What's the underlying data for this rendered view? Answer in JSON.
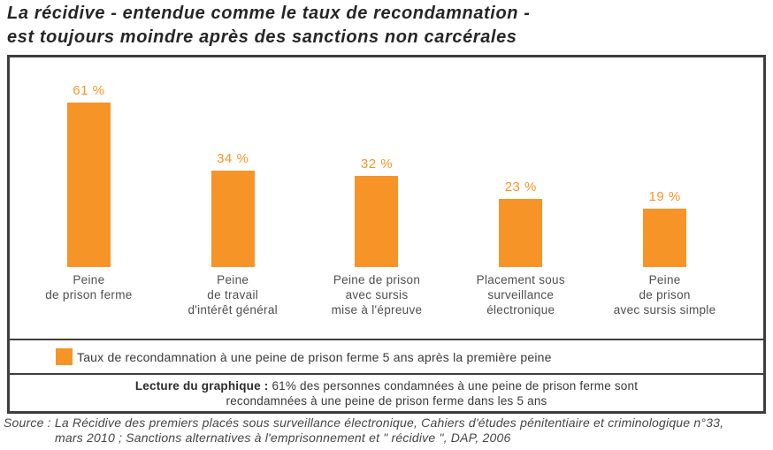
{
  "title": {
    "line1": "La récidive - entendue comme le taux de recondamnation -",
    "line2": "est toujours moindre après des sanctions non carcérales"
  },
  "chart_data": {
    "type": "bar",
    "categories": [
      [
        "Peine",
        "de prison ferme"
      ],
      [
        "Peine",
        "de travail",
        "d'intérêt général"
      ],
      [
        "Peine de prison",
        "avec sursis",
        "mise à l'épreuve"
      ],
      [
        "Placement sous",
        "surveillance",
        "électronique"
      ],
      [
        "Peine",
        "de prison",
        "avec sursis simple"
      ]
    ],
    "values": [
      61,
      34,
      32,
      23,
      19
    ],
    "value_labels": [
      "61 %",
      "34 %",
      "32 %",
      "23 %",
      "19 %"
    ],
    "bar_color": "#F79428",
    "value_label_color": "#F79428",
    "grid": false,
    "axes_visible": false,
    "legend": "Taux de recondamnation à une peine de prison ferme 5 ans après la première peine",
    "legend_position": "bottom"
  },
  "lecture": {
    "label": "Lecture du graphique :",
    "line1_rest": "61% des personnes condamnées à une peine de prison ferme sont",
    "line2": "recondamnées à une peine de prison ferme dans les 5 ans"
  },
  "source": {
    "line1": "Source : La Récidive des premiers placés sous surveillance électronique, Cahiers d'études pénitentiaire et criminologique n°33,",
    "line2": "mars 2010 ; Sanctions alternatives à l'emprisonnement et \" récidive \", DAP, 2006"
  }
}
